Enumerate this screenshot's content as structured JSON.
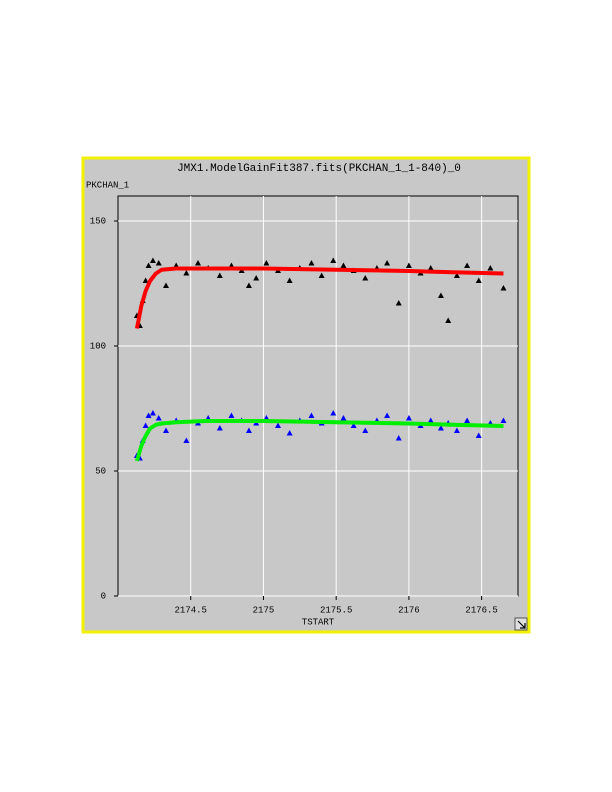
{
  "chart_data": {
    "type": "scatter",
    "title": "JMX1.ModelGainFit387.fits(PKCHAN_1_1-840)_0",
    "y_label": "PKCHAN_1",
    "x_label": "TSTART",
    "xlim": [
      2174.0,
      2176.75
    ],
    "ylim": [
      0,
      160
    ],
    "xticks": [
      2174.5,
      2175,
      2175.5,
      2176,
      2176.5
    ],
    "yticks": [
      0,
      50,
      100,
      150
    ],
    "grid": true,
    "series": [
      {
        "mode": "markers",
        "color": "#000000",
        "x": [
          2174.13,
          2174.15,
          2174.17,
          2174.19,
          2174.21,
          2174.24,
          2174.28,
          2174.33,
          2174.4,
          2174.47,
          2174.55,
          2174.62,
          2174.7,
          2174.78,
          2174.85,
          2174.9,
          2174.95,
          2175.02,
          2175.1,
          2175.18,
          2175.25,
          2175.33,
          2175.4,
          2175.48,
          2175.55,
          2175.62,
          2175.7,
          2175.78,
          2175.85,
          2175.93,
          2176.0,
          2176.08,
          2176.15,
          2176.22,
          2176.27,
          2176.33,
          2176.4,
          2176.48,
          2176.56,
          2176.65
        ],
        "values": [
          112,
          108,
          118,
          126,
          132,
          134,
          133,
          124,
          132,
          129,
          133,
          131,
          128,
          132,
          130,
          124,
          127,
          133,
          130,
          126,
          131,
          133,
          128,
          134,
          132,
          130,
          127,
          131,
          133,
          117,
          132,
          129,
          131,
          120,
          110,
          128,
          132,
          126,
          131,
          123
        ]
      },
      {
        "mode": "markers",
        "color": "#0000ff",
        "x": [
          2174.13,
          2174.15,
          2174.17,
          2174.19,
          2174.21,
          2174.24,
          2174.28,
          2174.33,
          2174.4,
          2174.47,
          2174.55,
          2174.62,
          2174.7,
          2174.78,
          2174.85,
          2174.9,
          2174.95,
          2175.02,
          2175.1,
          2175.18,
          2175.25,
          2175.33,
          2175.4,
          2175.48,
          2175.55,
          2175.62,
          2175.7,
          2175.78,
          2175.85,
          2175.93,
          2176.0,
          2176.08,
          2176.15,
          2176.22,
          2176.27,
          2176.33,
          2176.4,
          2176.48,
          2176.56,
          2176.65
        ],
        "values": [
          56,
          55,
          62,
          68,
          72,
          73,
          71,
          66,
          70,
          62,
          69,
          71,
          67,
          72,
          70,
          66,
          69,
          71,
          68,
          65,
          70,
          72,
          69,
          73,
          71,
          68,
          66,
          70,
          72,
          63,
          71,
          68,
          70,
          67,
          69,
          66,
          70,
          64,
          69,
          70
        ]
      },
      {
        "mode": "lines",
        "color": "#ff0000",
        "x": [
          2174.13,
          2174.16,
          2174.19,
          2174.22,
          2174.26,
          2174.3,
          2174.4,
          2174.6,
          2175,
          2175.5,
          2176,
          2176.3,
          2176.65
        ],
        "values": [
          107,
          116,
          122,
          126,
          129,
          130.5,
          131,
          131,
          131,
          130.5,
          130,
          129.5,
          129
        ]
      },
      {
        "mode": "lines",
        "color": "#00ee00",
        "x": [
          2174.13,
          2174.16,
          2174.19,
          2174.22,
          2174.26,
          2174.3,
          2174.4,
          2174.6,
          2175,
          2175.5,
          2176,
          2176.3,
          2176.65
        ],
        "values": [
          54,
          60,
          64,
          67,
          68.5,
          69,
          69.5,
          70,
          70,
          69.5,
          69,
          68.5,
          68
        ]
      }
    ]
  }
}
